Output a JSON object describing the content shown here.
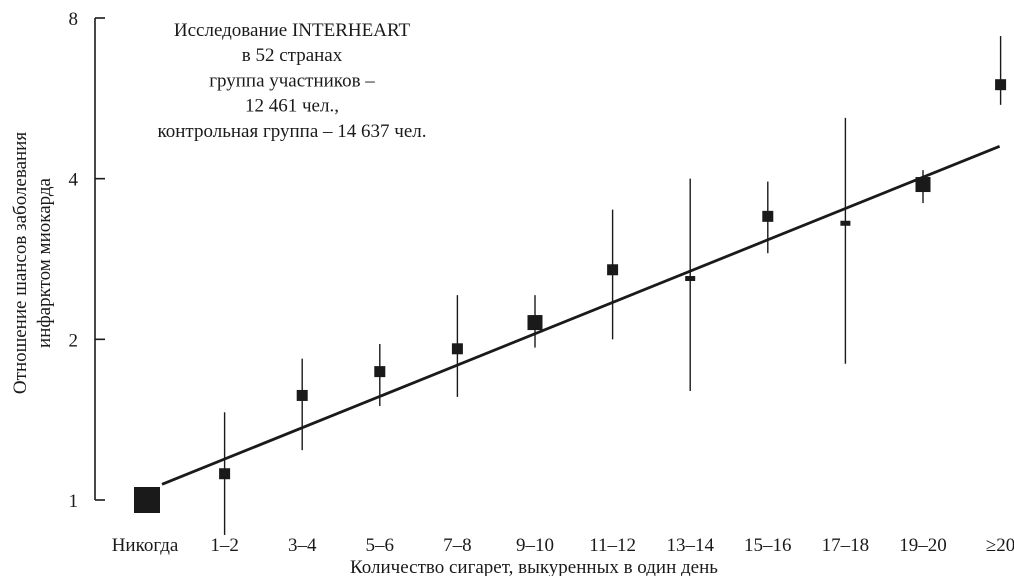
{
  "chart_data": {
    "type": "scatter",
    "annotation_lines": [
      "Исследование INTERHEART",
      "в 52 странах",
      "группа участников –",
      "12 461 чел.,",
      "контрольная группа – 14 637 чел."
    ],
    "xlabel": "Количество сигарет, выкуренных в один день",
    "ylabel_lines": [
      "Отношение шансов заболевания",
      "инфарктом миокарда"
    ],
    "y_scale": "log",
    "ylim": [
      1,
      8
    ],
    "yticks": [
      {
        "value": 1,
        "label": "1"
      },
      {
        "value": 2,
        "label": "2"
      },
      {
        "value": 4,
        "label": "4"
      },
      {
        "value": 8,
        "label": "8"
      }
    ],
    "categories": [
      "Никогда",
      "1–2",
      "3–4",
      "5–6",
      "7–8",
      "9–10",
      "11–12",
      "13–14",
      "15–16",
      "17–18",
      "19–20",
      "≥20"
    ],
    "points": [
      {
        "category": "Никогда",
        "or": 1.0,
        "ci_low": 1.0,
        "ci_high": 1.0,
        "weight": "large"
      },
      {
        "category": "1–2",
        "or": 1.12,
        "ci_low": 0.86,
        "ci_high": 1.46,
        "weight": "small"
      },
      {
        "category": "3–4",
        "or": 1.57,
        "ci_low": 1.24,
        "ci_high": 1.84,
        "weight": "small"
      },
      {
        "category": "5–6",
        "or": 1.74,
        "ci_low": 1.5,
        "ci_high": 1.96,
        "weight": "small"
      },
      {
        "category": "7–8",
        "or": 1.92,
        "ci_low": 1.56,
        "ci_high": 2.42,
        "weight": "small"
      },
      {
        "category": "9–10",
        "or": 2.15,
        "ci_low": 1.93,
        "ci_high": 2.42,
        "weight": "medium"
      },
      {
        "category": "11–12",
        "or": 2.7,
        "ci_low": 2.0,
        "ci_high": 3.5,
        "weight": "small"
      },
      {
        "category": "13–14",
        "or": 2.6,
        "ci_low": 1.6,
        "ci_high": 4.0,
        "weight": "tiny"
      },
      {
        "category": "15–16",
        "or": 3.4,
        "ci_low": 2.9,
        "ci_high": 3.95,
        "weight": "small"
      },
      {
        "category": "17–18",
        "or": 3.3,
        "ci_low": 1.8,
        "ci_high": 5.2,
        "weight": "tiny"
      },
      {
        "category": "19–20",
        "or": 3.9,
        "ci_low": 3.6,
        "ci_high": 4.15,
        "weight": "medium"
      },
      {
        "category": "≥20",
        "or": 6.0,
        "ci_low": 5.5,
        "ci_high": 7.4,
        "weight": "small"
      }
    ],
    "trend_line": {
      "from": {
        "category": "Никогда",
        "value": 1.07
      },
      "to": {
        "category": "≥20",
        "value": 4.6
      }
    },
    "grid": false,
    "legend": "none"
  }
}
